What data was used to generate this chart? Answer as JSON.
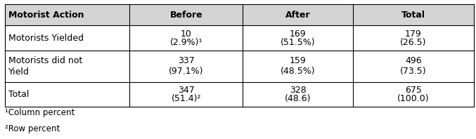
{
  "col_headers": [
    "Motorist Action",
    "Before",
    "After",
    "Total"
  ],
  "rows": [
    {
      "label": "Motorists Yielded",
      "before_n": "10",
      "before_pct": "(2.9%)¹",
      "after_n": "169",
      "after_pct": "(51.5%)",
      "total_n": "179",
      "total_pct": "(26.5)"
    },
    {
      "label": "Motorists did not\nYield",
      "before_n": "337",
      "before_pct": "(97.1%)",
      "after_n": "159",
      "after_pct": "(48.5%)",
      "total_n": "496",
      "total_pct": "(73.5)"
    },
    {
      "label": "Total",
      "before_n": "347",
      "before_pct": "(51.4)²",
      "after_n": "328",
      "after_pct": "(48.6)",
      "total_n": "675",
      "total_pct": "(100.0)"
    }
  ],
  "footnotes": [
    "¹Column percent",
    "²Row percent"
  ],
  "header_color": "#d4d4d4",
  "grid_color": "#000000",
  "bg_color": "#ffffff",
  "font_size": 9.0,
  "header_font_size": 9.0
}
